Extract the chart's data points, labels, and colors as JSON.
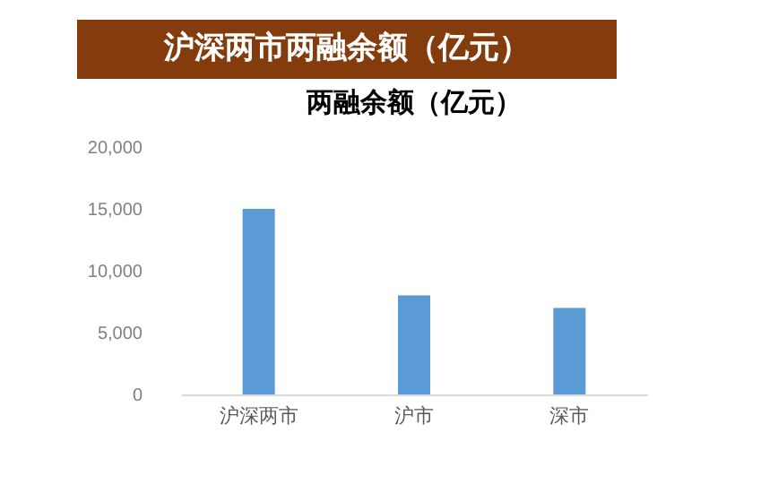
{
  "chart_data": {
    "type": "bar",
    "title": "沪深两市两融余额（亿元）",
    "subtitle": "两融余额（亿元）",
    "categories": [
      "沪深两市",
      "沪市",
      "深市"
    ],
    "values": [
      15000,
      8000,
      7000
    ],
    "color": "#5b9bd5",
    "ylim": [
      0,
      20000
    ],
    "yticks": [
      {
        "value": 0,
        "label": "0"
      },
      {
        "value": 5000,
        "label": "5,000"
      },
      {
        "value": 10000,
        "label": "10,000"
      },
      {
        "value": 15000,
        "label": "15,000"
      },
      {
        "value": 20000,
        "label": "20,000"
      }
    ],
    "grid": false
  }
}
